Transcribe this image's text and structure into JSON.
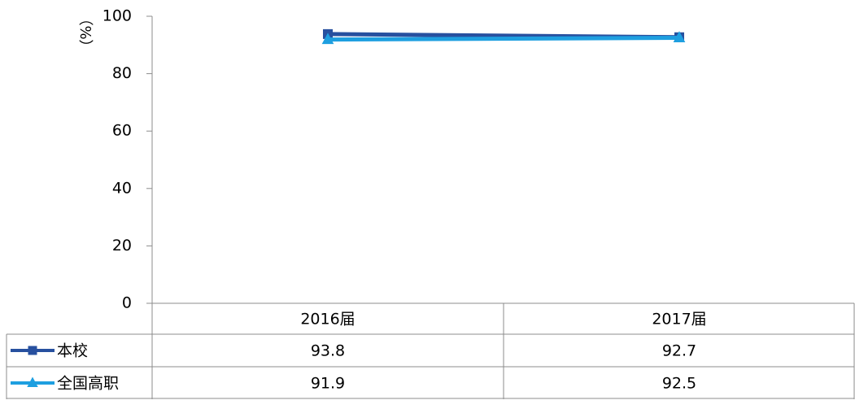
{
  "chart_data": {
    "type": "line",
    "y_label": "（%）",
    "categories": [
      "2016届",
      "2017届"
    ],
    "series": [
      {
        "name": "本校",
        "color": "#27509f",
        "marker": "square",
        "values": [
          93.8,
          92.7
        ]
      },
      {
        "name": "全国高职",
        "color": "#1e9fe0",
        "marker": "triangle",
        "values": [
          91.9,
          92.5
        ]
      }
    ],
    "ylim": [
      0,
      100
    ],
    "yticks": [
      0,
      20,
      40,
      60,
      80,
      100
    ],
    "grid": false,
    "data_table": true
  }
}
